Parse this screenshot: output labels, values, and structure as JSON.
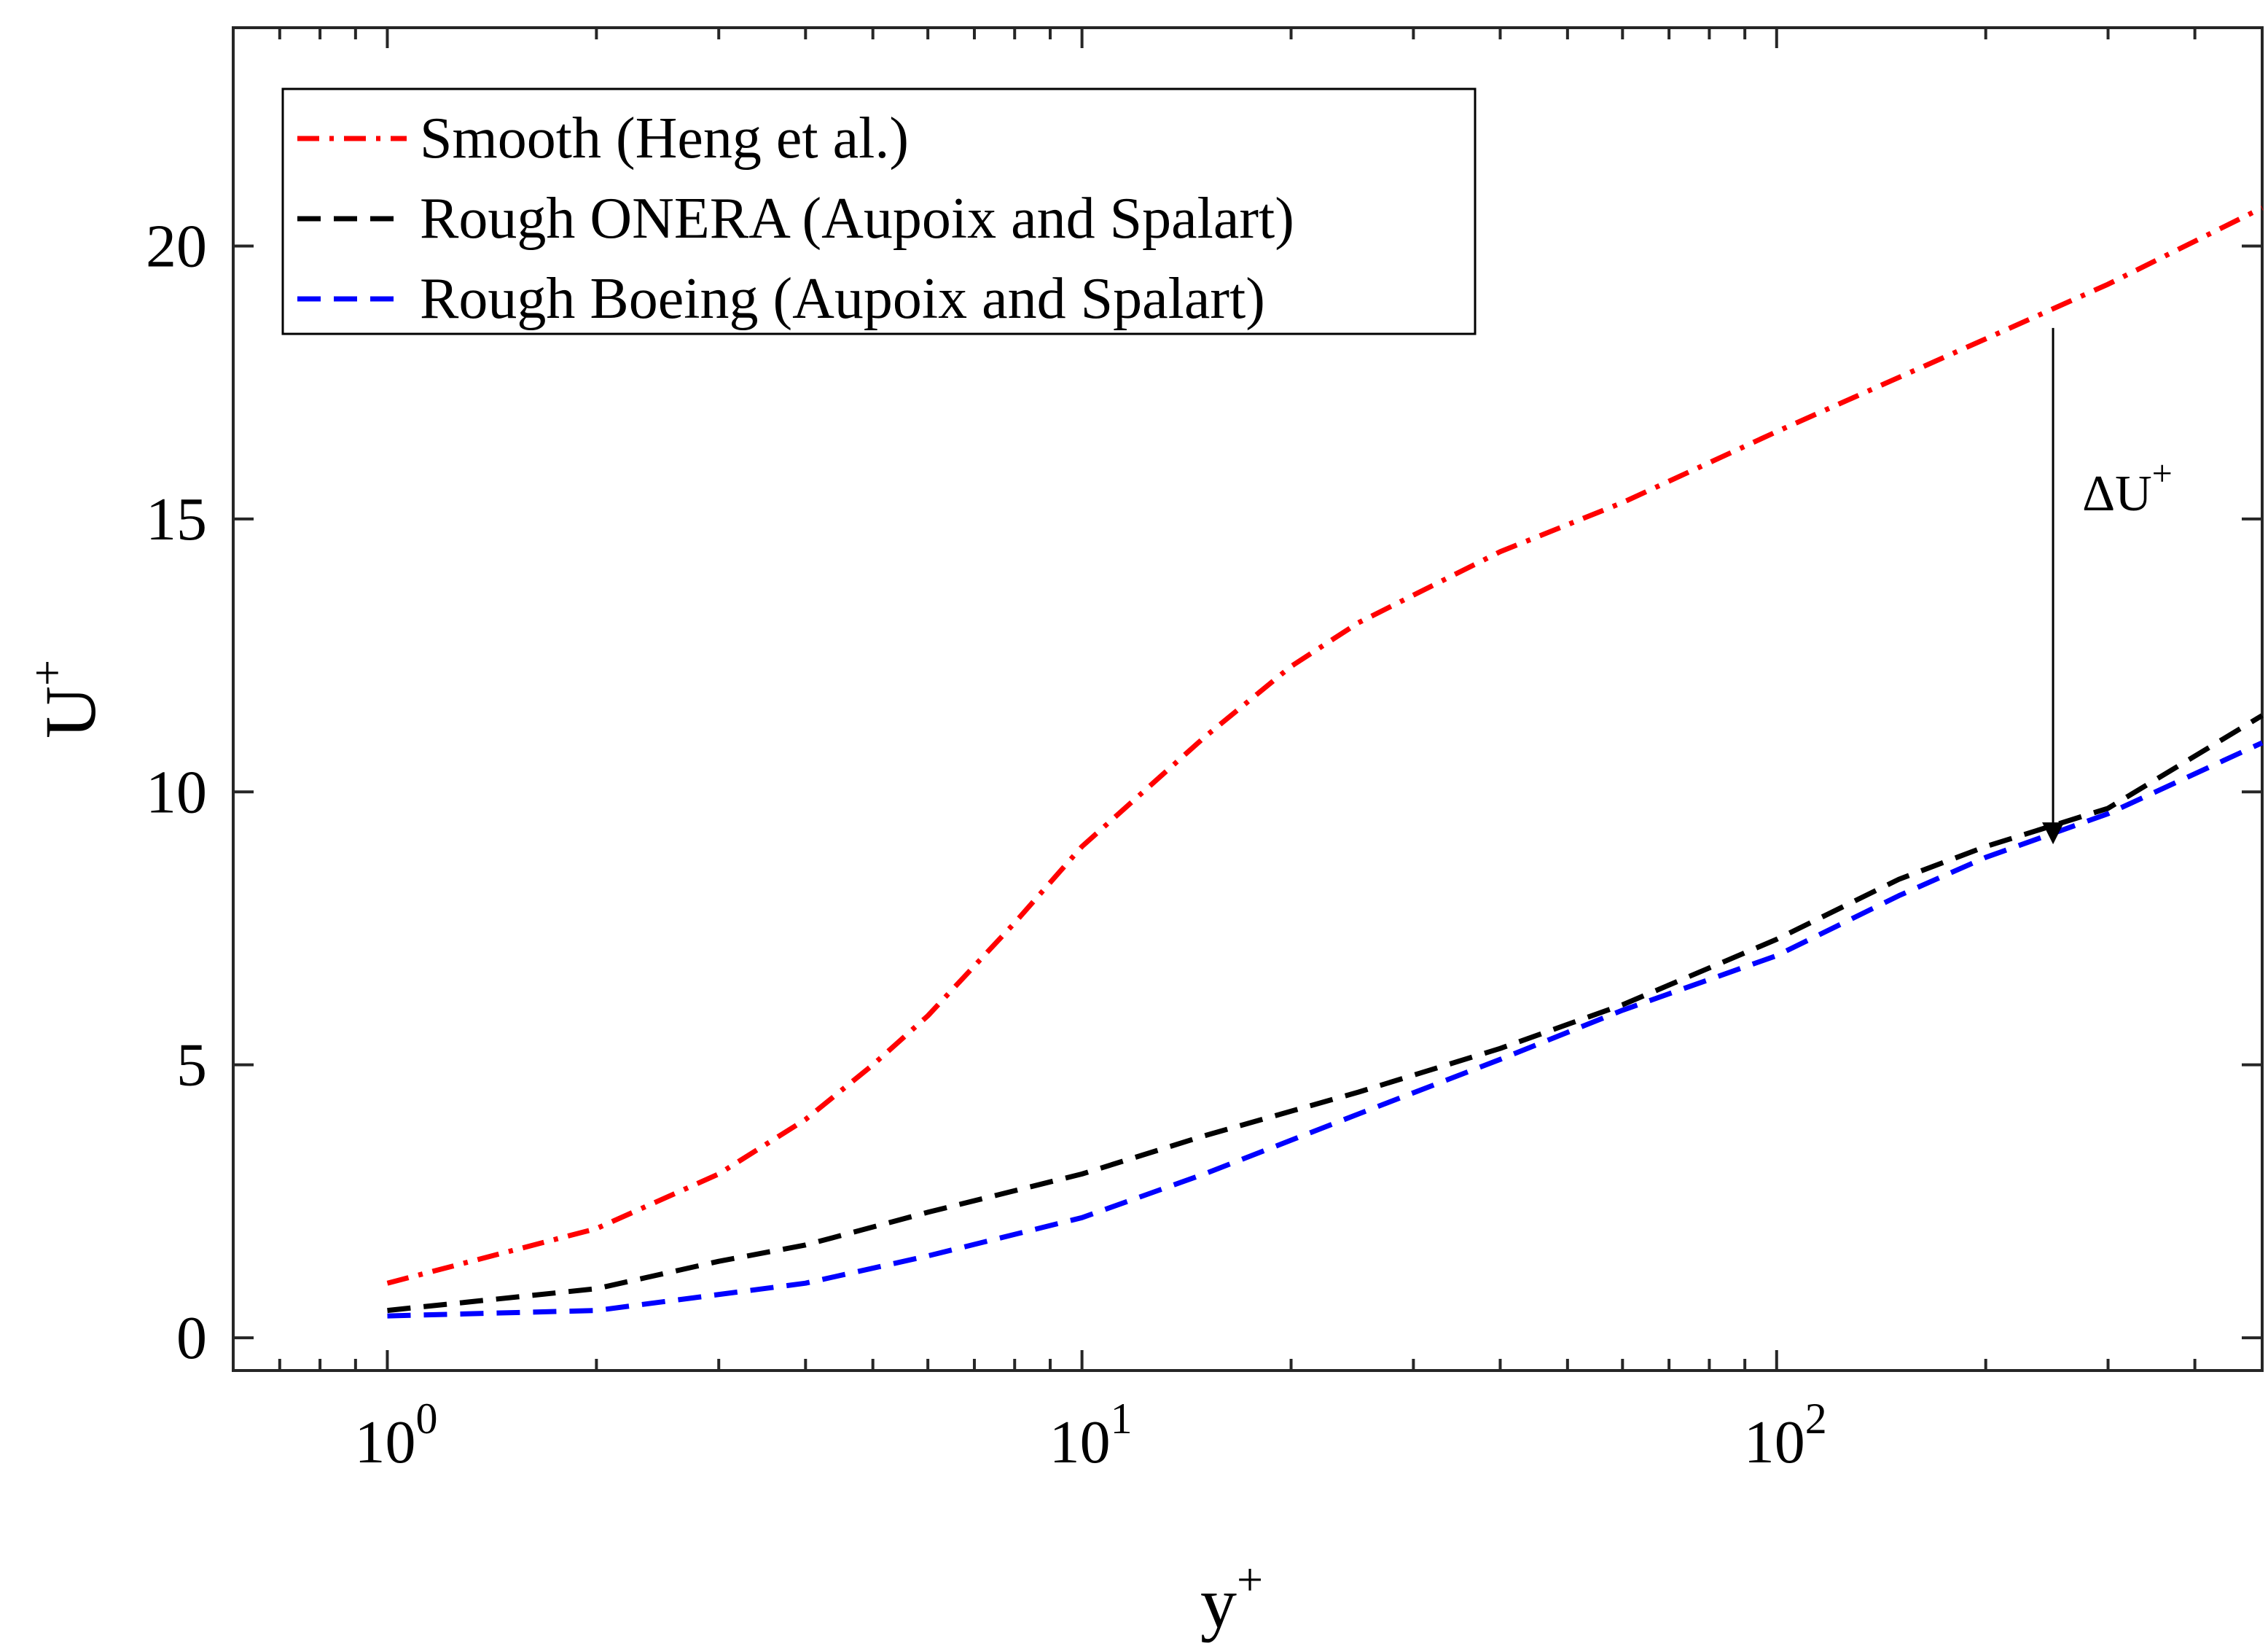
{
  "chart_data": {
    "type": "line",
    "title": "",
    "xlabel": "y",
    "xlabel_sup": "+",
    "ylabel": "U",
    "ylabel_sup": "+",
    "xscale": "log",
    "xlim": [
      0.6,
      500
    ],
    "ylim": [
      -0.6,
      24
    ],
    "grid": false,
    "legend_position": "top-left",
    "x_ticks": [
      {
        "value": 1,
        "base": "10",
        "exp": "0"
      },
      {
        "value": 10,
        "base": "10",
        "exp": "1"
      },
      {
        "value": 100,
        "base": "10",
        "exp": "2"
      }
    ],
    "y_ticks": [
      0,
      5,
      10,
      15,
      20
    ],
    "series": [
      {
        "name": "Smooth (Heng et al.)",
        "color": "#ff0000",
        "style": "dashdot",
        "x": [
          1,
          2,
          3,
          4,
          5,
          6,
          8,
          10,
          15,
          20,
          25,
          40,
          60,
          100,
          200,
          300,
          500
        ],
        "y": [
          1.0,
          2.0,
          3.0,
          4.0,
          5.0,
          5.9,
          7.6,
          9.0,
          11.0,
          12.3,
          13.1,
          14.4,
          15.3,
          16.6,
          18.3,
          19.3,
          20.7
        ]
      },
      {
        "name": "Rough ONERA (Aupoix and Spalart)",
        "color": "#000000",
        "style": "dashed",
        "x": [
          1,
          2,
          3,
          4,
          6,
          10,
          15,
          25,
          40,
          60,
          100,
          150,
          200,
          300,
          500
        ],
        "y": [
          0.5,
          0.9,
          1.4,
          1.7,
          2.3,
          3.0,
          3.7,
          4.5,
          5.3,
          6.1,
          7.3,
          8.4,
          9.0,
          9.7,
          11.4
        ]
      },
      {
        "name": "Rough Boeing (Aupoix and Spalart)",
        "color": "#0000ff",
        "style": "dashed",
        "x": [
          1,
          2,
          4,
          6,
          10,
          15,
          25,
          40,
          60,
          100,
          150,
          200,
          300,
          500
        ],
        "y": [
          0.4,
          0.5,
          1.0,
          1.5,
          2.2,
          3.0,
          4.1,
          5.1,
          6.0,
          7.0,
          8.1,
          8.8,
          9.6,
          10.9
        ]
      }
    ],
    "annotations": [
      {
        "text": "ΔU",
        "sup": "+",
        "x_from": 250,
        "y_from": 18.5,
        "x_to": 250,
        "y_to": 9.0
      }
    ]
  }
}
